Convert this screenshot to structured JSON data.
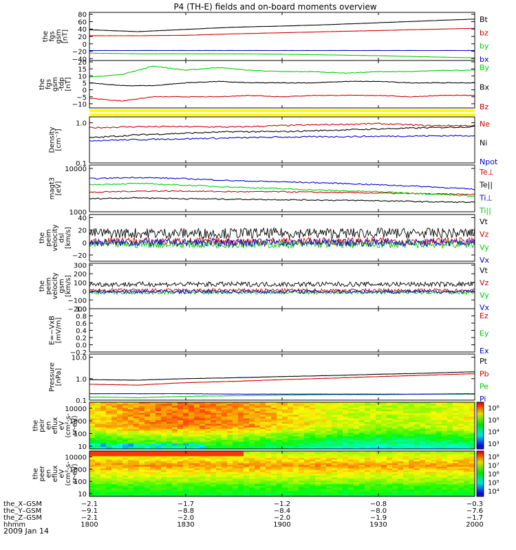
{
  "title": "P4 (TH-E) fields and on-board moments overview",
  "date_label": "2009 Jan 14",
  "colors": {
    "black": "#000000",
    "red": "#cc0000",
    "green": "#00cc00",
    "blue": "#0000cc",
    "yellow": "#ffff00"
  },
  "chart_data": [
    {
      "type": "line",
      "ylabel": [
        "the",
        "fgs",
        "gsm",
        "[nT]"
      ],
      "ytick_labels": [
        "80",
        "60",
        "40",
        "20",
        "0",
        "−20",
        "−40"
      ],
      "ylim": [
        -45,
        85
      ],
      "yticks": [
        80,
        60,
        40,
        20,
        0,
        -20,
        -40
      ],
      "series": [
        {
          "name": "Bt",
          "color": "#000000",
          "x": [
            1800,
            1815,
            1830,
            1845,
            1900,
            1915,
            1930,
            1945,
            2000
          ],
          "y": [
            38,
            33,
            39,
            45,
            48,
            52,
            57,
            62,
            67
          ]
        },
        {
          "name": "bz",
          "color": "#cc0000",
          "x": [
            1800,
            1815,
            1830,
            1845,
            1900,
            1915,
            1930,
            1945,
            2000
          ],
          "y": [
            22,
            22,
            23,
            27,
            30,
            33,
            36,
            39,
            42
          ]
        },
        {
          "name": "by",
          "color": "#00cc00",
          "x": [
            1800,
            1815,
            1830,
            1845,
            1900,
            1915,
            1930,
            1945,
            2000
          ],
          "y": [
            -25,
            -27,
            -27,
            -27,
            -28,
            -30,
            -32,
            -35,
            -38
          ]
        },
        {
          "name": "bx",
          "color": "#0000cc",
          "x": [
            1800,
            1815,
            1830,
            1845,
            1900,
            1915,
            1930,
            1945,
            2000
          ],
          "y": [
            -18,
            -18,
            -18,
            -18,
            -18,
            -18,
            -18,
            -18,
            -18
          ]
        }
      ]
    },
    {
      "type": "line",
      "ylabel": [
        "the",
        "fgs",
        "gsm",
        "-tdp",
        "[nT]"
      ],
      "ytick_labels": [
        "20",
        "15",
        "10",
        "5",
        "0",
        "−5",
        "−10"
      ],
      "ylim": [
        -13,
        21
      ],
      "yticks": [
        20,
        15,
        10,
        5,
        0,
        -5,
        -10
      ],
      "series": [
        {
          "name": "By",
          "color": "#00cc00",
          "x": [
            1800,
            1810,
            1820,
            1830,
            1840,
            1850,
            1900,
            1910,
            1920,
            1930,
            1940,
            1950,
            2000
          ],
          "y": [
            9,
            11,
            17,
            14,
            16,
            14,
            13,
            13,
            12,
            13,
            13,
            14,
            14
          ]
        },
        {
          "name": "Bx",
          "color": "#000000",
          "x": [
            1800,
            1810,
            1820,
            1830,
            1840,
            1850,
            1900,
            1910,
            1920,
            1930,
            1940,
            1950,
            2000
          ],
          "y": [
            5,
            3,
            3,
            5,
            6,
            5,
            5,
            5,
            6,
            6,
            5,
            5,
            5
          ]
        },
        {
          "name": "Bz",
          "color": "#cc0000",
          "x": [
            1800,
            1810,
            1820,
            1830,
            1840,
            1850,
            1900,
            1910,
            1920,
            1930,
            1940,
            1950,
            2000
          ],
          "y": [
            -6,
            -8,
            -5,
            -5,
            -5,
            -4,
            -5,
            -4,
            -4,
            -4,
            -5,
            -4,
            -4
          ]
        }
      ]
    },
    {
      "type": "line",
      "ylabel": [
        "Density",
        "[cm⁻³]"
      ],
      "yscale": "log",
      "ytick_labels": [
        "1.0",
        "0.1"
      ],
      "ylim": [
        0.1,
        1.4
      ],
      "yticks": [
        1.0,
        0.1
      ],
      "series": [
        {
          "name": "Ne",
          "color": "#cc0000",
          "x": [
            1800,
            1815,
            1830,
            1845,
            1900,
            1915,
            1930,
            1945,
            2000
          ],
          "y": [
            0.75,
            0.8,
            0.8,
            0.78,
            0.85,
            0.9,
            0.95,
            0.85,
            0.85
          ]
        },
        {
          "name": "Ni",
          "color": "#000000",
          "x": [
            1800,
            1815,
            1830,
            1845,
            1900,
            1915,
            1930,
            1945,
            2000
          ],
          "y": [
            0.42,
            0.5,
            0.55,
            0.6,
            0.6,
            0.65,
            0.7,
            0.75,
            0.8
          ]
        },
        {
          "name": "Npot",
          "color": "#0000cc",
          "x": [
            1800,
            1815,
            1830,
            1845,
            1900,
            1915,
            1930,
            1945,
            2000
          ],
          "y": [
            0.36,
            0.38,
            0.4,
            0.42,
            0.44,
            0.45,
            0.46,
            0.47,
            0.48
          ]
        }
      ]
    },
    {
      "type": "line",
      "ylabel": [
        "magt3",
        "[eV]"
      ],
      "yscale": "log",
      "ytick_labels": [
        "10000",
        "1000"
      ],
      "ylim": [
        1000,
        12000
      ],
      "yticks": [
        10000,
        1000
      ],
      "series": [
        {
          "name": "Te⊥",
          "color": "#cc0000",
          "x": [
            1800,
            1815,
            1830,
            1845,
            1900,
            1915,
            1930,
            1945,
            2000
          ],
          "y": [
            2800,
            3000,
            3000,
            2900,
            2900,
            2800,
            2700,
            2600,
            2500
          ]
        },
        {
          "name": "Te||",
          "color": "#000000",
          "x": [
            1800,
            1815,
            1830,
            1845,
            1900,
            1915,
            1930,
            1945,
            2000
          ],
          "y": [
            2000,
            2100,
            2000,
            1950,
            1900,
            1850,
            1800,
            1700,
            1650
          ]
        },
        {
          "name": "Ti⊥",
          "color": "#0000cc",
          "x": [
            1800,
            1815,
            1830,
            1845,
            1900,
            1915,
            1930,
            1945,
            2000
          ],
          "y": [
            5800,
            6200,
            5800,
            5200,
            4900,
            4600,
            4200,
            3800,
            3300
          ]
        },
        {
          "name": "Ti||",
          "color": "#00cc00",
          "x": [
            1800,
            1815,
            1830,
            1845,
            1900,
            1915,
            1930,
            1945,
            2000
          ],
          "y": [
            4200,
            4500,
            4100,
            3700,
            3400,
            3100,
            2900,
            2600,
            2300
          ]
        }
      ]
    },
    {
      "type": "line",
      "ylabel": [
        "the",
        "peim",
        "velocity",
        "dsl",
        "[km/s]"
      ],
      "ytick_labels": [
        "40",
        "20",
        "0",
        "−20"
      ],
      "ylim": [
        -30,
        45
      ],
      "yticks": [
        40,
        20,
        0,
        -20
      ],
      "series": [
        {
          "name": "Vt",
          "color": "#000000",
          "x": [
            1800,
            1830,
            1900,
            1930,
            2000
          ],
          "y": [
            15,
            15,
            15,
            15,
            15
          ]
        },
        {
          "name": "Vz",
          "color": "#cc0000",
          "x": [
            1800,
            1830,
            1900,
            1930,
            2000
          ],
          "y": [
            2,
            2,
            2,
            2,
            2
          ]
        },
        {
          "name": "Vy",
          "color": "#00cc00",
          "x": [
            1800,
            1830,
            1900,
            1930,
            2000
          ],
          "y": [
            -3,
            -3,
            -3,
            -3,
            -3
          ]
        },
        {
          "name": "Vx",
          "color": "#0000cc",
          "x": [
            1800,
            1830,
            1900,
            1930,
            2000
          ],
          "y": [
            0,
            0,
            0,
            0,
            0
          ]
        }
      ]
    },
    {
      "type": "line",
      "ylabel": [
        "the",
        "peim",
        "velocity",
        "gsm",
        "[km/s]"
      ],
      "ytick_labels": [
        "300",
        "200",
        "100",
        "0",
        "−100",
        "−200"
      ],
      "ylim": [
        -200,
        320
      ],
      "yticks": [
        300,
        200,
        100,
        0,
        -100,
        -200
      ],
      "series": [
        {
          "name": "Vt",
          "color": "#000000",
          "x": [
            1800,
            1830,
            1900,
            1930,
            2000
          ],
          "y": [
            80,
            80,
            80,
            80,
            80
          ]
        },
        {
          "name": "Vz",
          "color": "#cc0000",
          "x": [
            1800,
            1830,
            1900,
            1930,
            2000
          ],
          "y": [
            10,
            10,
            10,
            10,
            10
          ]
        },
        {
          "name": "Vy",
          "color": "#00cc00",
          "x": [
            1800,
            1830,
            1900,
            1930,
            2000
          ],
          "y": [
            -15,
            -15,
            -15,
            -15,
            -15
          ]
        },
        {
          "name": "Vx",
          "color": "#0000cc",
          "x": [
            1800,
            1830,
            1900,
            1930,
            2000
          ],
          "y": [
            -5,
            -5,
            -5,
            -5,
            -5
          ]
        }
      ]
    },
    {
      "type": "line",
      "ylabel": [
        "E=−VxB",
        "[mV/m]"
      ],
      "ytick_labels": [
        "1.0",
        "0.8",
        "0.6",
        "0.4",
        "0.2",
        "0.0",
        "−0.2"
      ],
      "ylim": [
        -0.2,
        1.0
      ],
      "yticks": [
        1.0,
        0.8,
        0.6,
        0.4,
        0.2,
        0.0,
        -0.2
      ],
      "series": [
        {
          "name": "Ez",
          "color": "#cc0000",
          "x": [],
          "y": []
        },
        {
          "name": "Ey",
          "color": "#00cc00",
          "x": [],
          "y": []
        },
        {
          "name": "Ex",
          "color": "#0000cc",
          "x": [],
          "y": []
        }
      ]
    },
    {
      "type": "line",
      "ylabel": [
        "Pressure",
        "[nPa]"
      ],
      "yscale": "log",
      "ytick_labels": [
        "10.0",
        "1.0",
        "0.1"
      ],
      "ylim": [
        0.1,
        14
      ],
      "yticks": [
        10.0,
        1.0,
        0.1
      ],
      "series": [
        {
          "name": "Pt",
          "color": "#000000",
          "x": [
            1800,
            1815,
            1830,
            1845,
            1900,
            1915,
            1930,
            1945,
            2000
          ],
          "y": [
            0.9,
            0.85,
            1.0,
            1.1,
            1.25,
            1.4,
            1.6,
            1.8,
            2.1
          ]
        },
        {
          "name": "Pb",
          "color": "#cc0000",
          "x": [
            1800,
            1815,
            1830,
            1845,
            1900,
            1915,
            1930,
            1945,
            2000
          ],
          "y": [
            0.55,
            0.5,
            0.65,
            0.75,
            0.9,
            1.05,
            1.25,
            1.45,
            1.7
          ]
        },
        {
          "name": "Pe",
          "color": "#00cc00",
          "x": [
            1800,
            1815,
            1830,
            1845,
            1900,
            1915,
            1930,
            1945,
            2000
          ],
          "y": [
            0.14,
            0.13,
            0.15,
            0.16,
            0.17,
            0.18,
            0.18,
            0.19,
            0.19
          ]
        },
        {
          "name": "Pi",
          "color": "#0000cc",
          "x": [
            1800,
            1815,
            1830,
            1845,
            1900,
            1915,
            1930,
            1945,
            2000
          ],
          "y": [
            0.2,
            0.2,
            0.2,
            0.19,
            0.19,
            0.19,
            0.19,
            0.19,
            0.2
          ]
        }
      ]
    },
    {
      "type": "heatmap",
      "ylabel": [
        "the",
        "peir",
        "en",
        "eflux",
        "eV",
        "(cm²-s-",
        "sr-eV)"
      ],
      "yscale": "log",
      "ytick_labels": [
        "10000",
        "1000",
        "100",
        "10"
      ],
      "yticks": [
        10000,
        1000,
        100,
        10
      ],
      "ylim": [
        6,
        30000
      ],
      "colorbar_ticks": [
        "10⁶",
        "10⁵",
        "10⁴",
        "10³"
      ],
      "colorbar_range": [
        1000,
        5000000
      ]
    },
    {
      "type": "heatmap",
      "ylabel": [
        "the",
        "peer",
        "en",
        "eflux",
        "eV",
        "(cm²-s-",
        "sr-eV)"
      ],
      "yscale": "log",
      "ytick_labels": [
        "10000",
        "1000",
        "100",
        "10"
      ],
      "yticks": [
        10000,
        1000,
        100,
        10
      ],
      "ylim": [
        6,
        30000
      ],
      "colorbar_ticks": [
        "10⁸",
        "10⁷",
        "10⁶",
        "10⁵",
        "10⁴"
      ],
      "colorbar_range": [
        5000,
        300000000
      ]
    }
  ],
  "xaxis": {
    "xlim": [
      1800,
      2000
    ],
    "ticks": [
      1800,
      1830,
      1900,
      1930,
      2000
    ],
    "rows": [
      {
        "label": "the_X–GSM",
        "values": [
          "−2.1",
          "−1.7",
          "−1.2",
          "−0.8",
          "−0.3"
        ]
      },
      {
        "label": "the_Y–GSM",
        "values": [
          "−9.1",
          "−8.8",
          "−8.4",
          "−8.0",
          "−7.6"
        ]
      },
      {
        "label": "the_Z–GSM",
        "values": [
          "−2.1",
          "−2.0",
          "−2.0",
          "−1.9",
          "−1.7"
        ]
      },
      {
        "label": "hhmm",
        "values": [
          "1800",
          "1830",
          "1900",
          "1930",
          "2000"
        ]
      }
    ]
  }
}
